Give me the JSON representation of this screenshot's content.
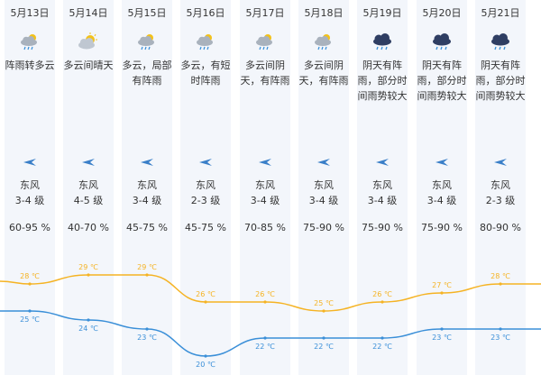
{
  "days": [
    {
      "date": "5月13日",
      "icon": "cloud-rain-sun-icon",
      "desc": "阵雨转多云",
      "wind_dir": "东风",
      "wind_level": "3-4 级",
      "humidity": "60-95 %"
    },
    {
      "date": "5月14日",
      "icon": "cloud-sun-icon",
      "desc": "多云间晴天",
      "wind_dir": "东风",
      "wind_level": "4-5 级",
      "humidity": "40-70 %"
    },
    {
      "date": "5月15日",
      "icon": "cloud-rain-sun-icon",
      "desc": "多云，局部\n有阵雨",
      "wind_dir": "东风",
      "wind_level": "3-4 级",
      "humidity": "45-75 %"
    },
    {
      "date": "5月16日",
      "icon": "cloud-rain-sun-icon",
      "desc": "多云，有短\n时阵雨",
      "wind_dir": "东风",
      "wind_level": "2-3 级",
      "humidity": "45-75 %"
    },
    {
      "date": "5月17日",
      "icon": "cloud-rain-sun-icon",
      "desc": "多云间阴\n天，有阵雨",
      "wind_dir": "东风",
      "wind_level": "3-4 级",
      "humidity": "70-85 %"
    },
    {
      "date": "5月18日",
      "icon": "cloud-rain-sun-icon",
      "desc": "多云间阴\n天，有阵雨",
      "wind_dir": "东风",
      "wind_level": "3-4 级",
      "humidity": "75-90 %"
    },
    {
      "date": "5月19日",
      "icon": "dark-cloud-rain-icon",
      "desc": "阴天有阵\n雨，部分时\n间雨势较大",
      "wind_dir": "东风",
      "wind_level": "3-4 级",
      "humidity": "75-90 %"
    },
    {
      "date": "5月20日",
      "icon": "dark-cloud-rain-icon",
      "desc": "阴天有阵\n雨，部分时\n间雨势较大",
      "wind_dir": "东风",
      "wind_level": "3-4 级",
      "humidity": "75-90 %"
    },
    {
      "date": "5月21日",
      "icon": "dark-cloud-rain-icon",
      "desc": "阴天有阵\n雨，部分时\n间雨势较大",
      "wind_dir": "东风",
      "wind_level": "2-3 级",
      "humidity": "80-90 %"
    }
  ],
  "chart_data": {
    "type": "line",
    "categories": [
      "5月13日",
      "5月14日",
      "5月15日",
      "5月16日",
      "5月17日",
      "5月18日",
      "5月19日",
      "5月20日",
      "5月21日"
    ],
    "series": [
      {
        "values": [
          28,
          29,
          29,
          26,
          26,
          25,
          26,
          27,
          28
        ],
        "labels": [
          "28 ℃",
          "29 ℃",
          "29 ℃",
          "26 ℃",
          "26 ℃",
          "25 ℃",
          "26 ℃",
          "27 ℃",
          "28 ℃"
        ],
        "color": "#f5b323"
      },
      {
        "values": [
          25,
          24,
          23,
          20,
          22,
          22,
          22,
          23,
          23
        ],
        "labels": [
          "25 ℃",
          "24 ℃",
          "23 ℃",
          "20 ℃",
          "22 ℃",
          "22 ℃",
          "22 ℃",
          "23 ℃",
          "23 ℃"
        ],
        "color": "#3a8fd8"
      }
    ]
  }
}
